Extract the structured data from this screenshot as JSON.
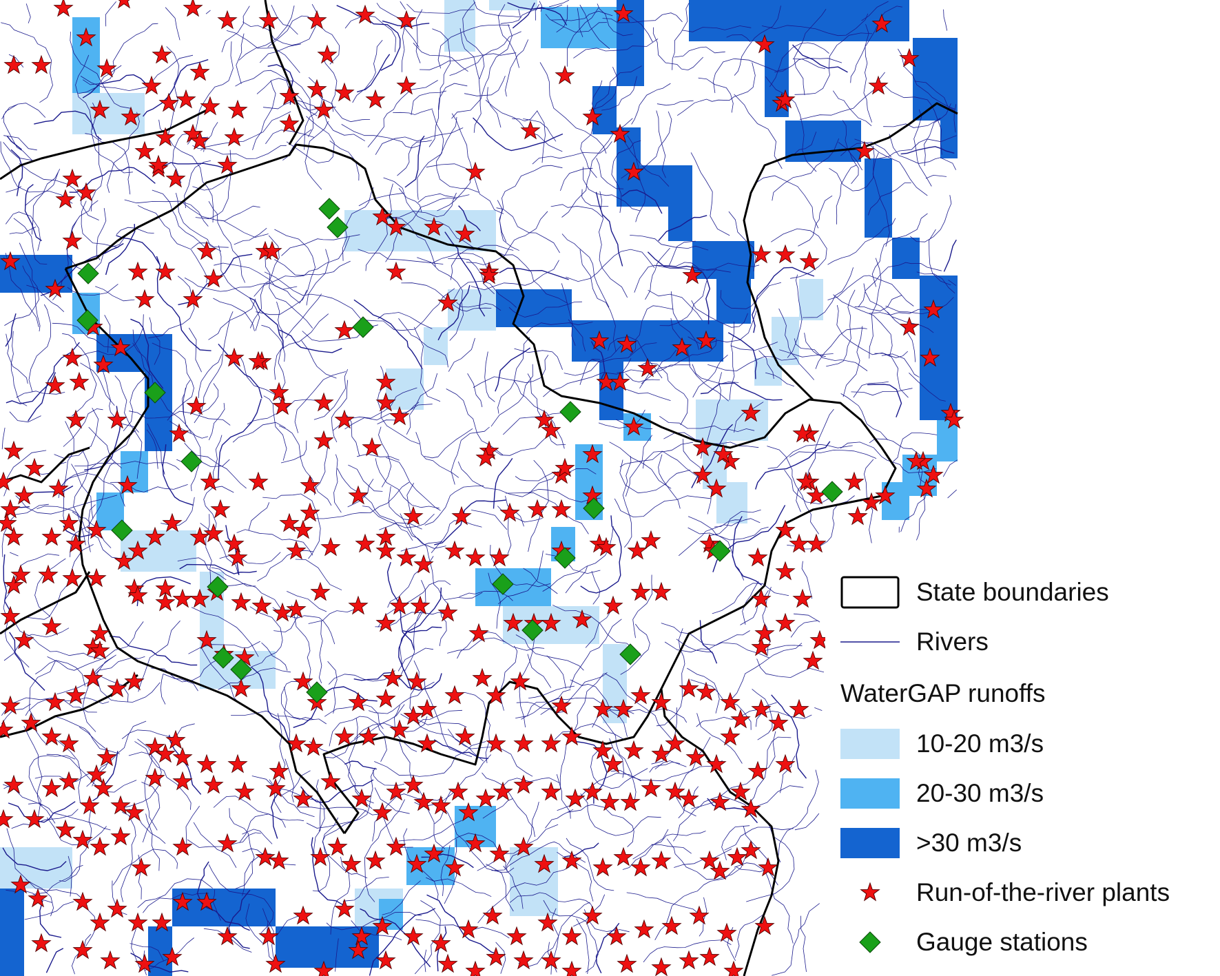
{
  "legend": {
    "state_boundaries": "State boundaries",
    "rivers": "Rivers",
    "runoff_title": "WaterGAP runoffs",
    "runoff_classes": [
      {
        "label": "10-20 m3/s",
        "color": "#c2e2f7"
      },
      {
        "label": "20-30 m3/s",
        "color": "#4fb3f2"
      },
      {
        "label": ">30 m3/s",
        "color": "#1464d0"
      }
    ],
    "plants": "Run-of-the-river plants",
    "gauges": "Gauge stations"
  },
  "colors": {
    "boundary": "#000000",
    "river": "#1a1a8c",
    "plant_fill": "#ee1111",
    "plant_stroke": "#550000",
    "gauge_fill": "#1aa01a",
    "gauge_stroke": "#0a4a0a"
  }
}
